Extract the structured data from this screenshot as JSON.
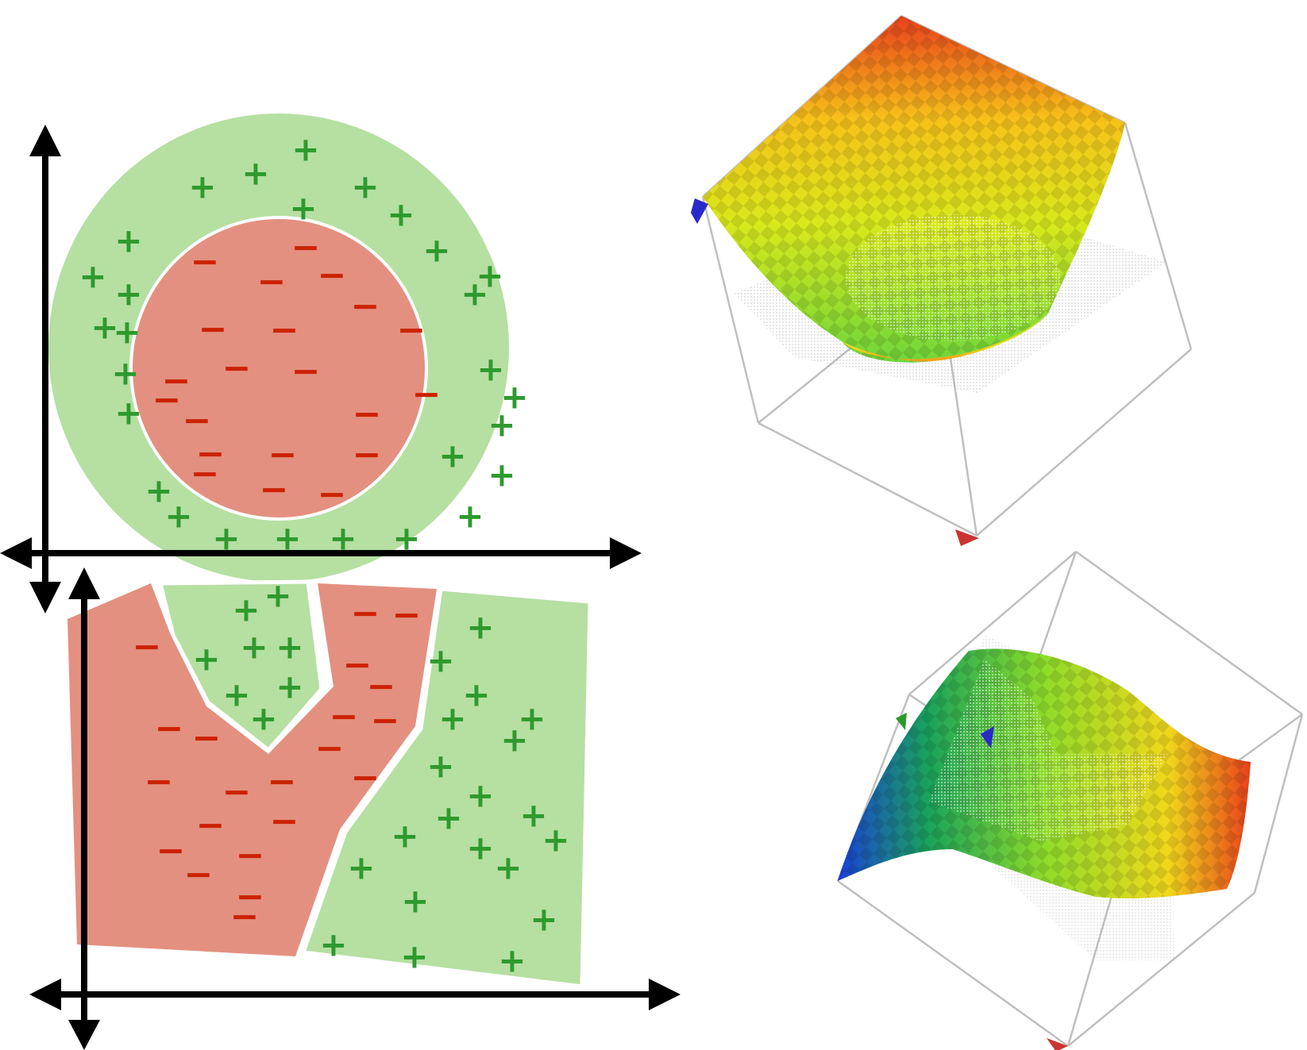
{
  "colors": {
    "positive_region": "#b6dfa2",
    "negative_region": "#e39080",
    "positive_mark": "#2e9a2e",
    "negative_mark": "#cc2200",
    "axis": "#000000",
    "box_edge": "#bfbfbf"
  },
  "marks": {
    "positive": "+",
    "negative": "−"
  },
  "panels": [
    {
      "name": "circular-decision-boundary-plot",
      "kind": "2d-classification",
      "boundary": "circle"
    },
    {
      "name": "piecewise-decision-boundary-plot",
      "kind": "2d-classification",
      "boundary": "polygon"
    },
    {
      "name": "paraboloid-surface-plot",
      "kind": "3d-surface",
      "shape": "bowl",
      "colormap": "red-yellow-green checkered"
    },
    {
      "name": "saddle-surface-plot",
      "kind": "3d-surface",
      "shape": "saddle",
      "colormap": "blue-green-yellow-red checkered"
    }
  ]
}
